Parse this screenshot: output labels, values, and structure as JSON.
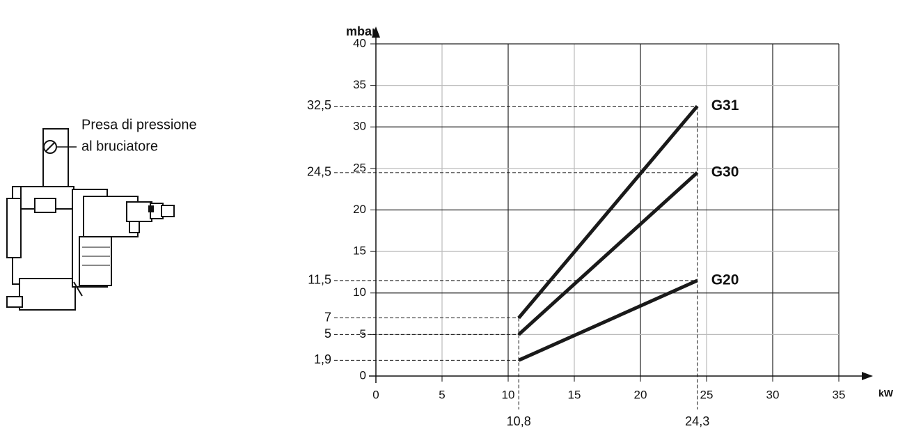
{
  "chart_data": {
    "type": "line",
    "y_label": "mbar",
    "x_label": "kW",
    "annotation_lines": [
      "Presa di pressione",
      "al bruciatore"
    ],
    "x": [
      10.8,
      24.3
    ],
    "series": [
      {
        "name": "G31",
        "color": "#1a1a1a",
        "values": [
          7,
          32.5
        ]
      },
      {
        "name": "G30",
        "color": "#1a1a1a",
        "values": [
          5,
          24.5
        ]
      },
      {
        "name": "G20",
        "color": "#1a1a1a",
        "values": [
          1.9,
          11.5
        ]
      }
    ],
    "xlim": [
      0,
      35
    ],
    "xticks": [
      0,
      5,
      10,
      15,
      20,
      25,
      30,
      35
    ],
    "ylim": [
      0,
      40
    ],
    "yticks": [
      0,
      5,
      10,
      15,
      20,
      25,
      30,
      35,
      40
    ],
    "grid": true,
    "reference_lines": {
      "y": [
        {
          "value": 32.5,
          "label": "32,5"
        },
        {
          "value": 24.5,
          "label": "24,5"
        },
        {
          "value": 11.5,
          "label": "11,5"
        },
        {
          "value": 7,
          "label": "7"
        },
        {
          "value": 5,
          "label": "5"
        },
        {
          "value": 1.9,
          "label": "1,9"
        }
      ],
      "x": [
        {
          "value": 10.8,
          "label": "10,8"
        },
        {
          "value": 24.3,
          "label": "24,3"
        }
      ]
    }
  }
}
